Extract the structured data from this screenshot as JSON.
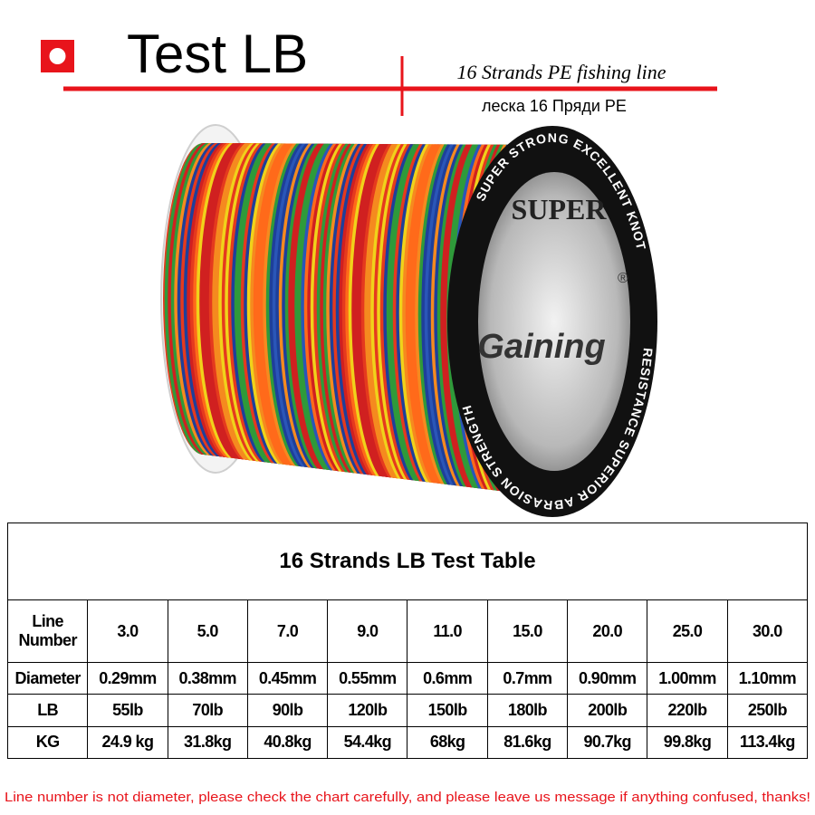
{
  "header": {
    "title": "Test LB",
    "subtitle": "16 Strands PE fishing line",
    "subtitle_ru": "леска 16 Пряди PE"
  },
  "spool": {
    "arc_top": "SUPER STRONG EXCELLENT KNOT",
    "arc_bottom": "RESISTANCE SUPERIOR ABRASION STRENGTH",
    "label_top": "SUPER",
    "brand": "Gaining",
    "mark": "®"
  },
  "table": {
    "title": "16 Strands LB Test Table",
    "rows": [
      [
        "Line Number",
        "3.0",
        "5.0",
        "7.0",
        "9.0",
        "11.0",
        "15.0",
        "20.0",
        "25.0",
        "30.0"
      ],
      [
        "Diameter",
        "0.29mm",
        "0.38mm",
        "0.45mm",
        "0.55mm",
        "0.6mm",
        "0.7mm",
        "0.90mm",
        "1.00mm",
        "1.10mm"
      ],
      [
        "LB",
        "55lb",
        "70lb",
        "90lb",
        "120lb",
        "150lb",
        "180lb",
        "200lb",
        "220lb",
        "250lb"
      ],
      [
        "KG",
        "24.9 kg",
        "31.8kg",
        "40.8kg",
        "54.4kg",
        "68kg",
        "81.6kg",
        "90.7kg",
        "99.8kg",
        "113.4kg"
      ]
    ]
  },
  "note": "Line number is not diameter, please check the chart carefully, and please leave us message if anything confused, thanks!"
}
